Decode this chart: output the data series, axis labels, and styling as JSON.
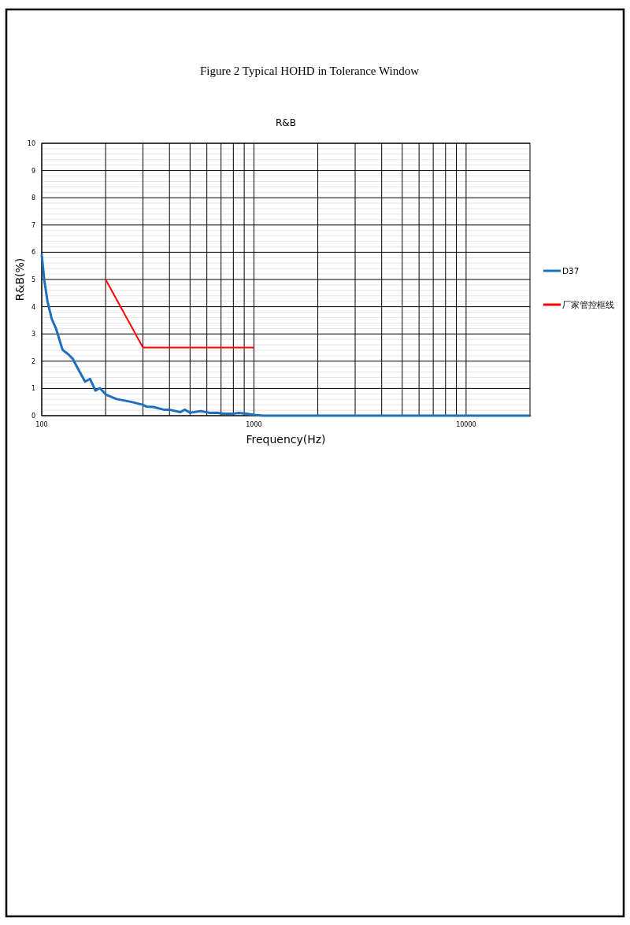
{
  "chart_data": {
    "type": "line",
    "title": "Figure 2 Typical HOHD in Tolerance Window",
    "subtitle": "R&B",
    "xlabel": "Frequency(Hz)",
    "ylabel": "R&B(%)",
    "log": "x",
    "xlim": [
      100,
      20000
    ],
    "xticks": [
      100,
      1000,
      10000
    ],
    "ylim": [
      0,
      10
    ],
    "yticks": [
      0,
      1,
      2,
      3,
      4,
      5,
      6,
      7,
      8,
      9,
      10
    ],
    "grid": true,
    "legend": "right",
    "series": [
      {
        "name": "D37",
        "color": "#1f6fbf",
        "x": [
          100,
          102.9,
          106.5,
          111.4,
          117,
          123.8,
          125.6,
          133,
          140,
          149,
          160,
          169,
          179,
          188,
          201,
          225,
          263,
          299,
          313,
          336,
          376,
          398,
          450,
          472,
          500,
          522,
          562,
          621,
          667,
          716,
          800,
          847,
          922,
          1000,
          1100,
          20000
        ],
        "values": [
          5.9,
          4.96,
          4.19,
          3.56,
          3.18,
          2.55,
          2.41,
          2.26,
          2.09,
          1.69,
          1.25,
          1.35,
          0.92,
          1.01,
          0.77,
          0.61,
          0.51,
          0.4,
          0.33,
          0.32,
          0.22,
          0.22,
          0.13,
          0.22,
          0.11,
          0.13,
          0.17,
          0.1,
          0.11,
          0.07,
          0.07,
          0.1,
          0.07,
          0.03,
          0,
          0
        ]
      },
      {
        "name": "厂家管控框线",
        "color": "#ff0000",
        "x": [
          200,
          300,
          1000
        ],
        "values": [
          5,
          2.5,
          2.5
        ]
      }
    ]
  }
}
